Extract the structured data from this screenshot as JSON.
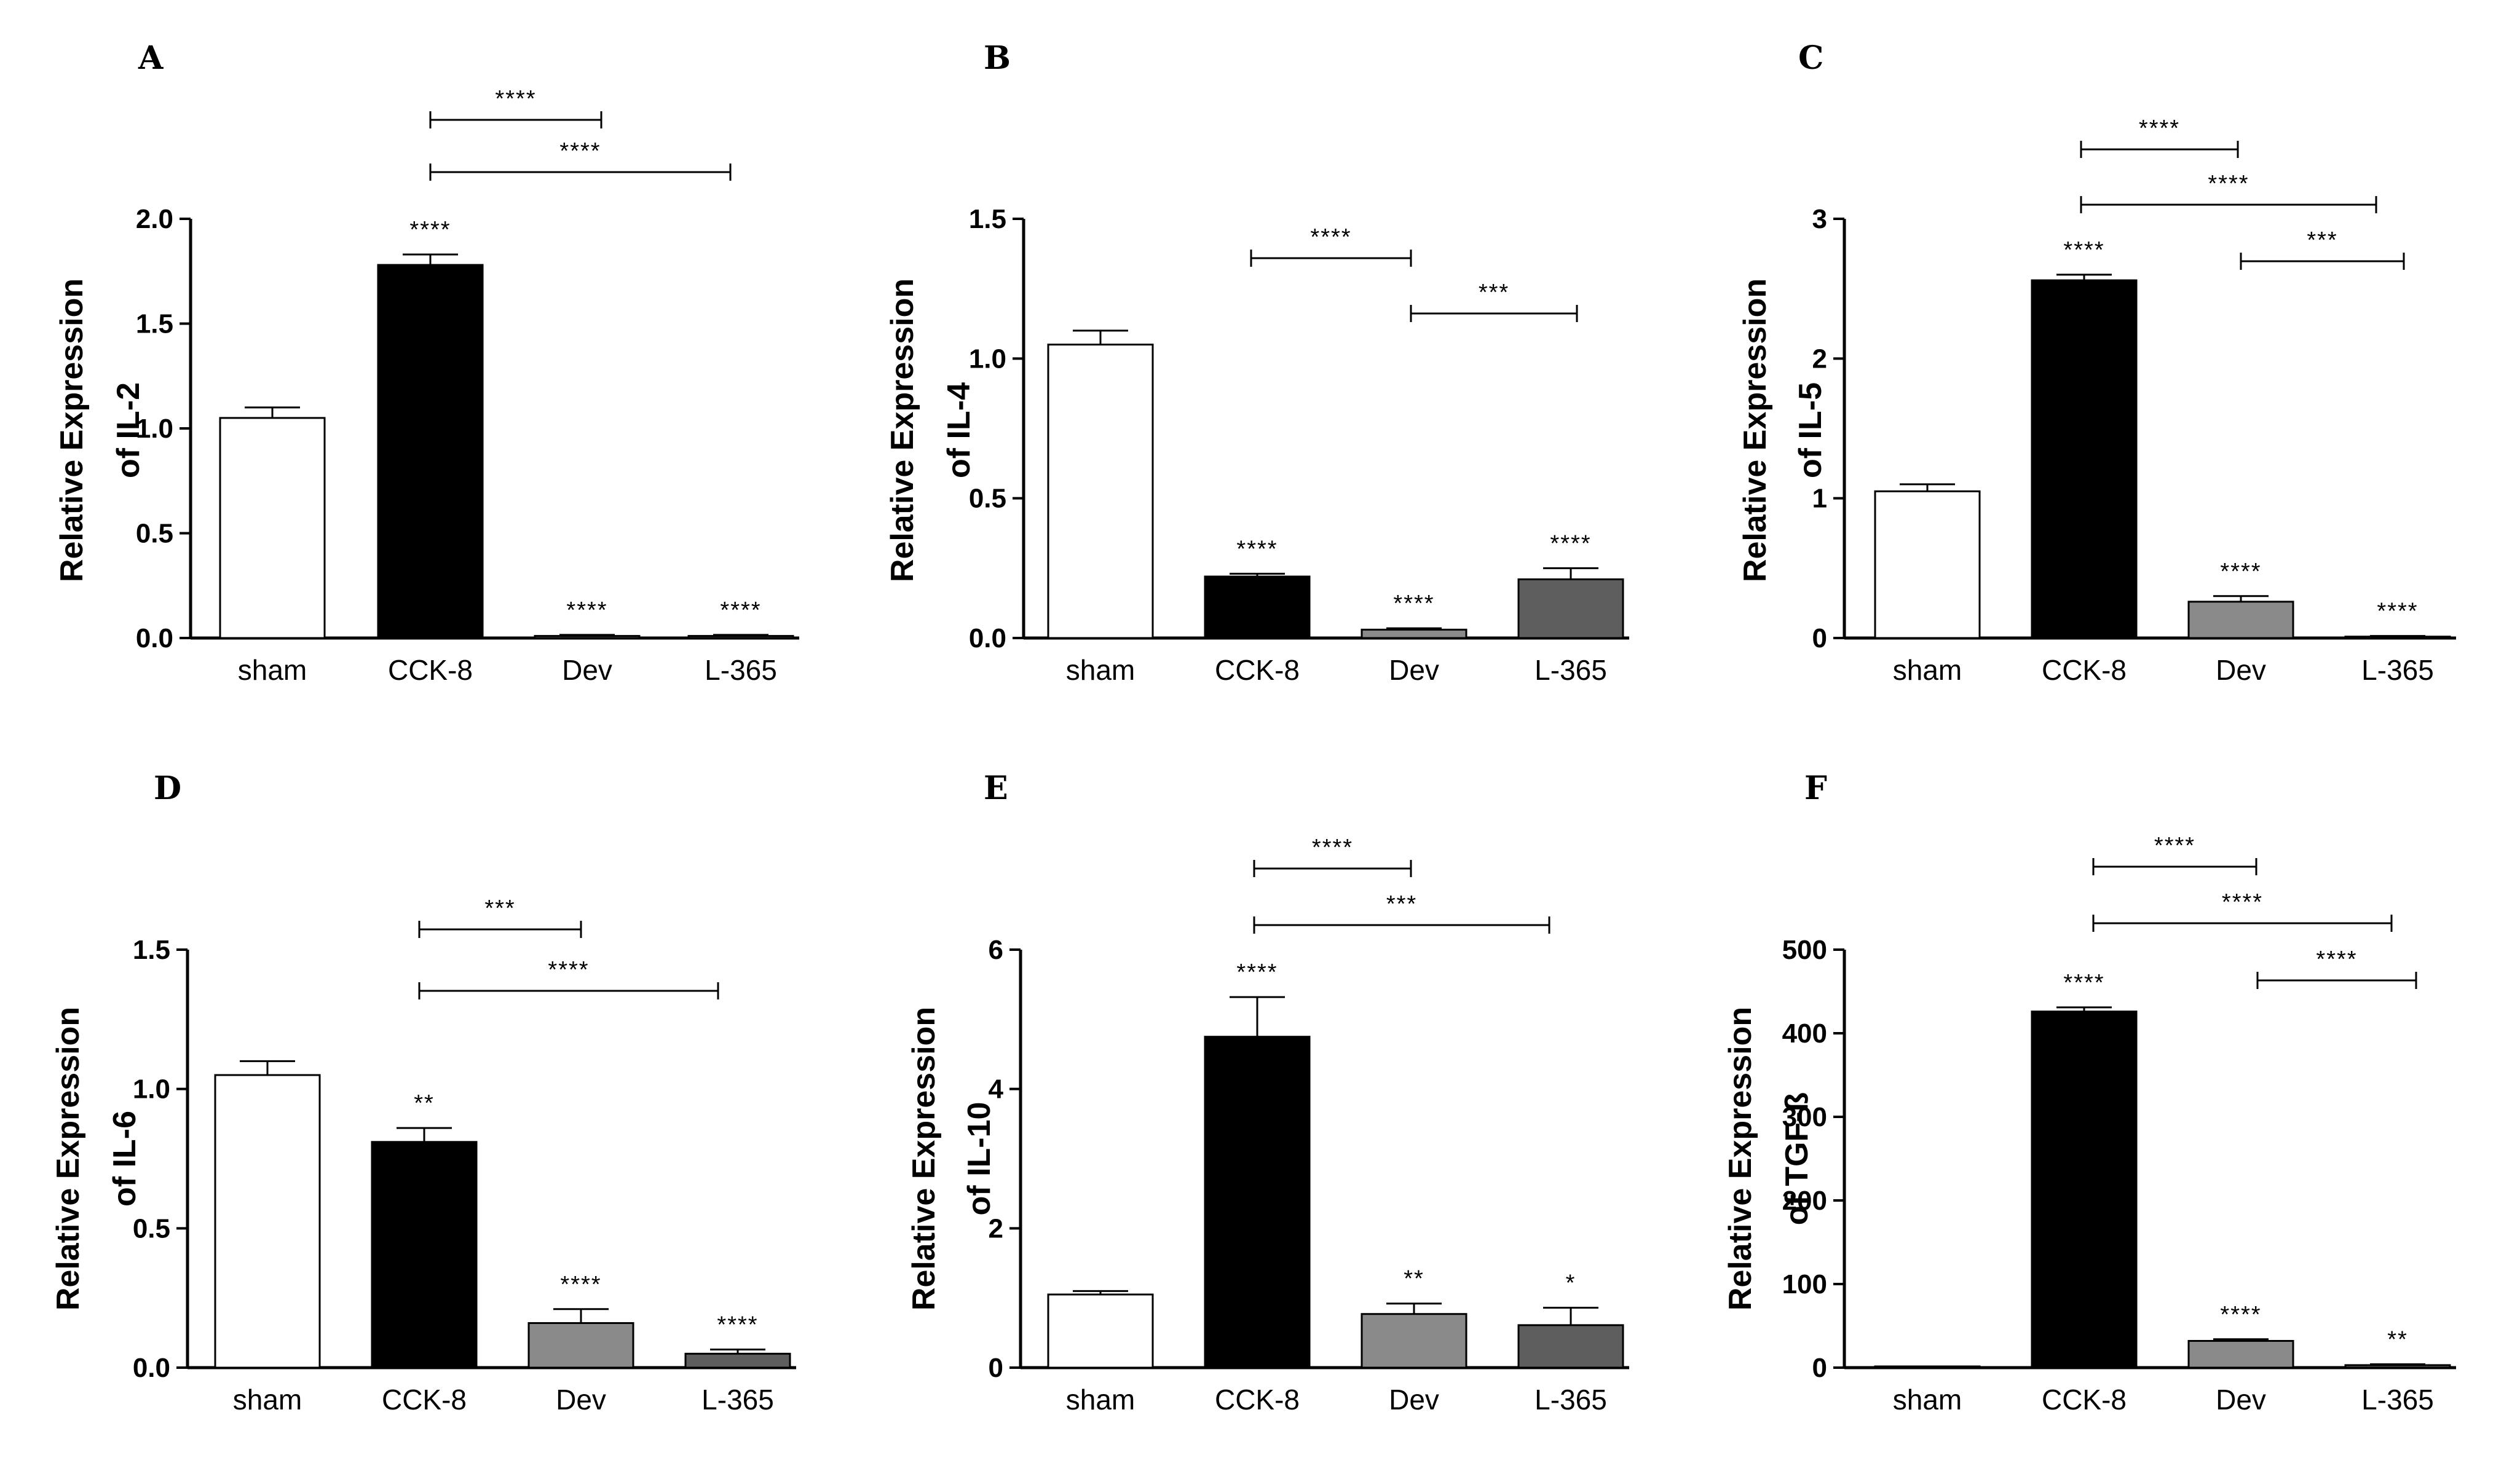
{
  "chart_data": [
    {
      "panel": "A",
      "type": "bar",
      "ylabel": "Relative Expression",
      "ylabel2": "of IL-2",
      "categories": [
        "sham",
        "CCK-8",
        "Dev",
        "L-365"
      ],
      "values": [
        1.05,
        1.78,
        0.01,
        0.01
      ],
      "errors": [
        0.05,
        0.05,
        0.005,
        0.005
      ],
      "sig": [
        "",
        "****",
        "****",
        "****"
      ],
      "ylim": [
        0,
        2.0
      ],
      "yticks": [
        "0.0",
        "0.5",
        "1.0",
        "1.5",
        "2.0"
      ],
      "ytick_values": [
        0,
        0.5,
        1.0,
        1.5,
        2.0
      ],
      "comparisons": [
        {
          "from": "CCK-8",
          "to": "Dev",
          "label": "****"
        },
        {
          "from": "CCK-8",
          "to": "L-365",
          "label": "****"
        }
      ]
    },
    {
      "panel": "B",
      "type": "bar",
      "ylabel": "Relative Expression",
      "ylabel2": "of IL-4",
      "categories": [
        "sham",
        "CCK-8",
        "Dev",
        "L-365"
      ],
      "values": [
        1.05,
        0.22,
        0.03,
        0.21
      ],
      "errors": [
        0.05,
        0.01,
        0.005,
        0.04
      ],
      "sig": [
        "",
        "****",
        "****",
        "****"
      ],
      "ylim": [
        0,
        1.5
      ],
      "yticks": [
        "0.0",
        "0.5",
        "1.0",
        "1.5"
      ],
      "ytick_values": [
        0,
        0.5,
        1.0,
        1.5
      ],
      "comparisons": [
        {
          "from": "CCK-8",
          "to": "Dev",
          "label": "****"
        },
        {
          "from": "Dev",
          "to": "L-365",
          "label": "***"
        }
      ]
    },
    {
      "panel": "C",
      "type": "bar",
      "ylabel": "Relative Expression",
      "ylabel2": "of IL-5",
      "categories": [
        "sham",
        "CCK-8",
        "Dev",
        "L-365"
      ],
      "values": [
        1.05,
        2.56,
        0.26,
        0.01
      ],
      "errors": [
        0.05,
        0.04,
        0.04,
        0.005
      ],
      "sig": [
        "",
        "****",
        "****",
        "****"
      ],
      "ylim": [
        0,
        3
      ],
      "yticks": [
        "0",
        "1",
        "2",
        "3"
      ],
      "ytick_values": [
        0,
        1,
        2,
        3
      ],
      "comparisons": [
        {
          "from": "CCK-8",
          "to": "Dev",
          "label": "****"
        },
        {
          "from": "CCK-8",
          "to": "L-365",
          "label": "****"
        },
        {
          "from": "Dev",
          "to": "L-365",
          "label": "***"
        }
      ]
    },
    {
      "panel": "D",
      "type": "bar",
      "ylabel": "Relative Expression",
      "ylabel2": "of IL-6",
      "categories": [
        "sham",
        "CCK-8",
        "Dev",
        "L-365"
      ],
      "values": [
        1.05,
        0.81,
        0.16,
        0.05
      ],
      "errors": [
        0.05,
        0.05,
        0.05,
        0.015
      ],
      "sig": [
        "",
        "**",
        "****",
        "****"
      ],
      "ylim": [
        0,
        1.5
      ],
      "yticks": [
        "0.0",
        "0.5",
        "1.0",
        "1.5"
      ],
      "ytick_values": [
        0,
        0.5,
        1.0,
        1.5
      ],
      "comparisons": [
        {
          "from": "CCK-8",
          "to": "Dev",
          "label": "***"
        },
        {
          "from": "CCK-8",
          "to": "L-365",
          "label": "****"
        }
      ]
    },
    {
      "panel": "E",
      "type": "bar",
      "ylabel": "Relative Expression",
      "ylabel2": "of IL-10",
      "categories": [
        "sham",
        "CCK-8",
        "Dev",
        "L-365"
      ],
      "values": [
        1.05,
        4.75,
        0.77,
        0.61
      ],
      "errors": [
        0.05,
        0.57,
        0.15,
        0.25
      ],
      "sig": [
        "",
        "****",
        "**",
        "*"
      ],
      "ylim": [
        0,
        6
      ],
      "yticks": [
        "0",
        "2",
        "4",
        "6"
      ],
      "ytick_values": [
        0,
        2,
        4,
        6
      ],
      "comparisons": [
        {
          "from": "CCK-8",
          "to": "Dev",
          "label": "****"
        },
        {
          "from": "CCK-8",
          "to": "L-365",
          "label": "***"
        }
      ]
    },
    {
      "panel": "F",
      "type": "bar",
      "ylabel": "Relative Expression",
      "ylabel2": "of TGF-ß",
      "categories": [
        "sham",
        "CCK-8",
        "Dev",
        "L-365"
      ],
      "values": [
        1,
        426,
        32,
        3
      ],
      "errors": [
        0,
        5,
        2,
        1
      ],
      "sig": [
        "",
        "****",
        "****",
        "**"
      ],
      "ylim": [
        0,
        500
      ],
      "yticks": [
        "0",
        "100",
        "200",
        "300",
        "400",
        "500"
      ],
      "ytick_values": [
        0,
        100,
        200,
        300,
        400,
        500
      ],
      "comparisons": [
        {
          "from": "CCK-8",
          "to": "Dev",
          "label": "****"
        },
        {
          "from": "CCK-8",
          "to": "L-365",
          "label": "****"
        },
        {
          "from": "Dev",
          "to": "L-365",
          "label": "****"
        }
      ]
    }
  ],
  "colors": {
    "sham": "#ffffff",
    "CCK-8": "#000000",
    "Dev": "#8a8a8a",
    "L-365": "#5e5e5e"
  }
}
